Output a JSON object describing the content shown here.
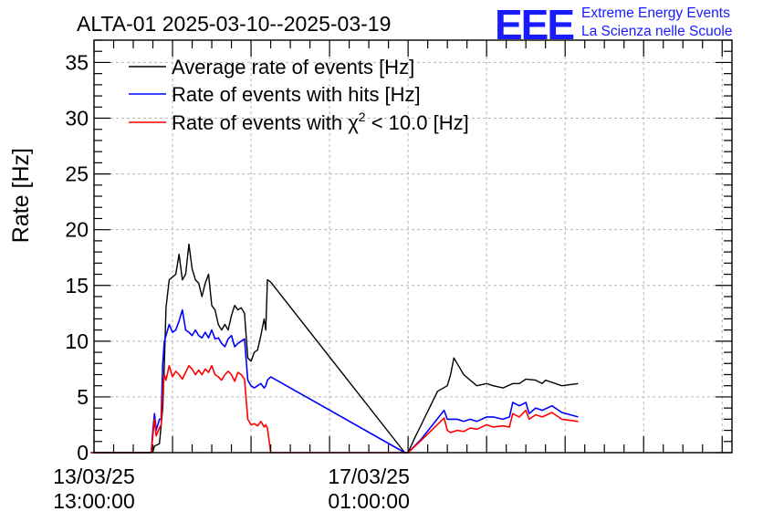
{
  "header": {
    "title": "ALTA-01 2025-03-10--2025-03-19",
    "logo_mark": "EEE",
    "logo_line1": "Extreme Energy Events",
    "logo_line2": "La Scienza nelle Scuole"
  },
  "chart_data": {
    "type": "line",
    "title": "ALTA-01 2025-03-10--2025-03-19",
    "ylabel": "Rate [Hz]",
    "xlabel": "",
    "xlim": [
      0,
      195
    ],
    "ylim": [
      0,
      37
    ],
    "x_unit": "hours since 13/03/25 13:00:00",
    "grid": true,
    "legend_position": "top-left",
    "yticks": [
      0,
      5,
      10,
      15,
      20,
      25,
      30,
      35
    ],
    "xticks": [
      {
        "x": 0,
        "line1": "13/03/25",
        "line2": "13:00:00"
      },
      {
        "x": 84,
        "line1": "17/03/25",
        "line2": "01:00:00"
      }
    ],
    "legend": {
      "s1": "Average rate of events [Hz]",
      "s2": "Rate of events with hits [Hz]",
      "s3_prefix": "Rate of events with ",
      "s3_symbol": "χ",
      "s3_sup": "2",
      "s3_suffix": " < 10.0 [Hz]"
    },
    "series": [
      {
        "color": "#000000",
        "x": [
          -1,
          17,
          18,
          18.5,
          20,
          21,
          21.5,
          22,
          23,
          25,
          26,
          27,
          28,
          29,
          30,
          31,
          32,
          33,
          34,
          35,
          36,
          37,
          38,
          39,
          40,
          41,
          42,
          43,
          44,
          45,
          46,
          47,
          48,
          49,
          50,
          51,
          52,
          52.5,
          53,
          54,
          95,
          96,
          98,
          100,
          105,
          108,
          109,
          110,
          111,
          113,
          115,
          117,
          120,
          122,
          125,
          128,
          130,
          132,
          135,
          137,
          138,
          140,
          143,
          148
        ],
        "y": [
          0,
          0,
          0.1,
          0.6,
          0.8,
          4,
          8,
          13,
          15.5,
          16,
          17.8,
          15.5,
          16,
          18.7,
          16.5,
          15.5,
          15.2,
          14,
          15.2,
          16,
          13.2,
          12.8,
          11.5,
          11,
          11.5,
          11,
          12.3,
          13.2,
          12.8,
          13,
          12.5,
          8.5,
          8.2,
          9,
          9.2,
          10.5,
          12,
          11,
          15.5,
          15.3,
          0,
          0,
          1.3,
          2.5,
          5.5,
          6,
          7,
          8.5,
          8,
          7,
          6.5,
          6,
          6.2,
          6,
          5.8,
          6.2,
          6.2,
          6.6,
          6.5,
          6.2,
          6.5,
          6.3,
          6,
          6.2
        ]
      },
      {
        "color": "#0000ff",
        "x": [
          -1,
          17.5,
          18,
          18.5,
          19,
          20,
          20.5,
          21,
          21.5,
          22,
          23,
          24,
          25,
          26,
          27,
          28,
          29,
          30,
          31,
          32,
          33,
          34,
          35,
          36,
          37,
          38,
          39,
          40,
          41,
          42,
          43,
          44,
          45,
          46,
          47,
          48,
          49,
          50,
          51,
          52,
          52.5,
          53,
          54,
          95,
          96,
          100,
          107,
          108,
          109,
          111,
          113,
          115,
          117,
          120,
          122,
          125,
          127,
          128,
          130,
          132,
          133,
          135,
          137,
          140,
          143,
          148
        ],
        "y": [
          0,
          0,
          2,
          3.5,
          2,
          3,
          3,
          8,
          10,
          10.5,
          11.5,
          10.8,
          11,
          11.8,
          12.8,
          11,
          10.8,
          10.5,
          11,
          10.5,
          10.3,
          10.8,
          10.3,
          11,
          10.2,
          10.3,
          9.8,
          9.5,
          10.2,
          10.5,
          9.5,
          9.8,
          10,
          10.2,
          6.5,
          6,
          5.8,
          6,
          6.2,
          5.8,
          6,
          6.5,
          6.8,
          0,
          0,
          1.2,
          3.8,
          3,
          3,
          3,
          2.8,
          3,
          2.8,
          3.2,
          3.2,
          3,
          3.2,
          4.5,
          4.2,
          4.5,
          3.5,
          4,
          3.8,
          4.2,
          3.6,
          3.2
        ]
      },
      {
        "color": "#ff0000",
        "x": [
          -1,
          17.5,
          18,
          18.5,
          19,
          20,
          20.5,
          21,
          21.5,
          22,
          23,
          24,
          25,
          26,
          27,
          28,
          29,
          30,
          31,
          32,
          33,
          34,
          35,
          36,
          37,
          38,
          39,
          40,
          41,
          42,
          43,
          44,
          45,
          46,
          47,
          48,
          49,
          50,
          51,
          52,
          52.5,
          53,
          54,
          95,
          96,
          100,
          107,
          108,
          109,
          111,
          113,
          115,
          117,
          120,
          122,
          125,
          127,
          128,
          130,
          132,
          133,
          135,
          137,
          140,
          143,
          148
        ],
        "y": [
          0,
          0,
          1.5,
          3,
          1.5,
          2.2,
          2.5,
          5.5,
          7,
          6.5,
          7.8,
          6.8,
          7.3,
          7,
          6.6,
          7.2,
          7.8,
          7.5,
          7,
          7.4,
          7,
          7.5,
          7.2,
          7.8,
          7,
          6.8,
          6.5,
          7,
          7.3,
          7,
          6.4,
          7.2,
          7,
          6.6,
          3,
          2.5,
          2.6,
          2.4,
          2.8,
          2.3,
          2.5,
          2.2,
          0,
          0,
          0,
          1.1,
          3.1,
          2,
          1.8,
          2,
          1.9,
          2.2,
          2.1,
          2.5,
          2.3,
          2.4,
          2.3,
          3.5,
          3.2,
          3.8,
          3,
          3.4,
          3.2,
          3.6,
          3,
          2.8
        ]
      }
    ]
  }
}
